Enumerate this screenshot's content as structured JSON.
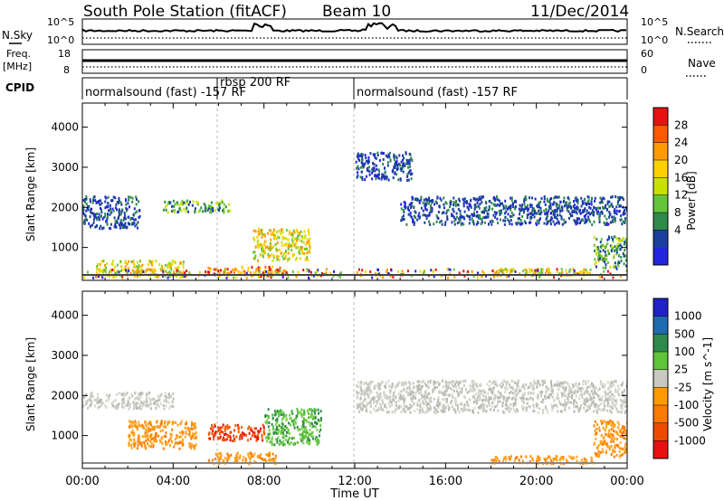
{
  "header": {
    "station": "South Pole Station (fitACF)",
    "beam": "Beam 10",
    "date": "11/Dec/2014"
  },
  "noise_panel": {
    "left_label": "N.Sky",
    "right_label": "N.Search",
    "left_ticks": [
      "10^5",
      "10^0"
    ],
    "right_ticks": [
      "10^5",
      "10^0"
    ]
  },
  "freq_panel": {
    "left_label_1": "Freq.",
    "left_label_2": "[MHz]",
    "right_label": "Nave",
    "left_ticks": [
      "18",
      "8"
    ],
    "right_ticks": [
      "60",
      "0"
    ]
  },
  "cpid_panel": {
    "label": "CPID",
    "segments": [
      {
        "name": "normalsound (fast) -157 RF",
        "start_hour": 0,
        "end_hour": 6
      },
      {
        "name": "rbsp 200 RF",
        "start_hour": 6,
        "end_hour": 12
      },
      {
        "name": "normalsound (fast) -157 RF",
        "start_hour": 12,
        "end_hour": 24
      }
    ]
  },
  "axes": {
    "ylabel": "Slant Range [km]",
    "xlabel": "Time UT",
    "y_ticks": [
      "1000",
      "2000",
      "3000",
      "4000"
    ],
    "x_ticks": [
      "00:00",
      "04:00",
      "08:00",
      "12:00",
      "16:00",
      "20:00",
      "00:00"
    ]
  },
  "power_scale": {
    "title": "Power [dB]",
    "labels": [
      "28",
      "24",
      "20",
      "16",
      "12",
      "8",
      "4"
    ],
    "colors": [
      "#e81010",
      "#ff5a00",
      "#ff9a00",
      "#ffd000",
      "#c8e000",
      "#66c43a",
      "#2e8a4a",
      "#1a3f9e",
      "#2424e0"
    ]
  },
  "velocity_scale": {
    "title": "Velocity [m s^-1]",
    "labels": [
      "1000",
      "500",
      "100",
      "25",
      "-25",
      "-100",
      "-500",
      "-1000"
    ],
    "colors": [
      "#2020c8",
      "#1f6ab0",
      "#2e8a4a",
      "#5ec43a",
      "#c8c8c0",
      "#ff9a00",
      "#ff7a00",
      "#f04a00",
      "#e81010"
    ]
  },
  "chart_data": {
    "type": "heatmap",
    "title": "South Pole Station (fitACF)",
    "xlabel": "Time UT",
    "ylabel": "Slant Range [km]",
    "xlim": [
      0,
      24
    ],
    "ylim": [
      180,
      4600
    ],
    "power_bands": [
      {
        "t0": 0.0,
        "t1": 2.5,
        "r0": 1500,
        "r1": 2300,
        "level": "low"
      },
      {
        "t0": 0.6,
        "t1": 4.5,
        "r0": 300,
        "r1": 700,
        "level": "high"
      },
      {
        "t0": 3.5,
        "t1": 6.5,
        "r0": 1900,
        "r1": 2200,
        "level": "mid"
      },
      {
        "t0": 5.5,
        "t1": 9.0,
        "r0": 330,
        "r1": 560,
        "level": "very high"
      },
      {
        "t0": 7.5,
        "t1": 10.0,
        "r0": 700,
        "r1": 1500,
        "level": "high"
      },
      {
        "t0": 12.0,
        "t1": 14.5,
        "r0": 2700,
        "r1": 3400,
        "level": "low"
      },
      {
        "t0": 14.0,
        "t1": 24.0,
        "r0": 1600,
        "r1": 2300,
        "level": "low"
      },
      {
        "t0": 18.0,
        "t1": 22.5,
        "r0": 330,
        "r1": 500,
        "level": "high"
      },
      {
        "t0": 22.5,
        "t1": 24.0,
        "r0": 500,
        "r1": 1300,
        "level": "mid"
      }
    ],
    "velocity_bands": [
      {
        "t0": 0.0,
        "t1": 4.0,
        "r0": 1700,
        "r1": 2100,
        "velocity_class": "-25 to 25"
      },
      {
        "t0": 2.0,
        "t1": 5.0,
        "r0": 700,
        "r1": 1400,
        "velocity_class": "-100 to -500"
      },
      {
        "t0": 5.5,
        "t1": 8.0,
        "r0": 900,
        "r1": 1300,
        "velocity_class": "-500 to -1000"
      },
      {
        "t0": 5.5,
        "t1": 8.5,
        "r0": 330,
        "r1": 600,
        "velocity_class": "-100 to -500"
      },
      {
        "t0": 8.0,
        "t1": 10.5,
        "r0": 800,
        "r1": 1700,
        "velocity_class": "25 to 100"
      },
      {
        "t0": 12.0,
        "t1": 24.0,
        "r0": 1600,
        "r1": 2400,
        "velocity_class": "-25 to 25"
      },
      {
        "t0": 18.0,
        "t1": 22.5,
        "r0": 330,
        "r1": 520,
        "velocity_class": "-100 to -500"
      },
      {
        "t0": 22.5,
        "t1": 24.0,
        "r0": 500,
        "r1": 1400,
        "velocity_class": "-100 to -500"
      }
    ]
  }
}
